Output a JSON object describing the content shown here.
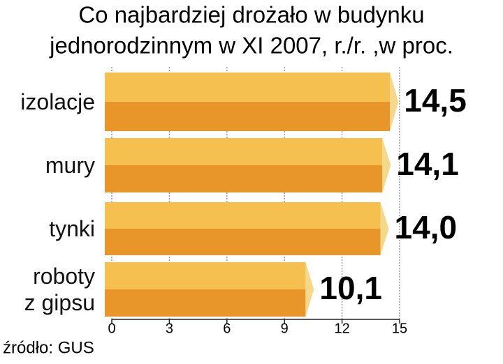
{
  "chart_data": {
    "type": "bar",
    "orientation": "horizontal",
    "title": [
      "Co najbardziej drożało w budynku",
      "jednorodzinnym w XI 2007, r./r. ,w proc."
    ],
    "categories": [
      "izolacje",
      "mury",
      "tynki",
      "roboty z gipsu"
    ],
    "values": [
      14.5,
      14.1,
      14.0,
      10.1
    ],
    "value_labels": [
      "14,5",
      "14,1",
      "14,0",
      "10,1"
    ],
    "color": "#f2b84b",
    "xlim": [
      0,
      15
    ],
    "xticks": [
      0,
      3,
      6,
      9,
      12,
      15
    ],
    "grid": true,
    "source": "źródło: GUS"
  }
}
